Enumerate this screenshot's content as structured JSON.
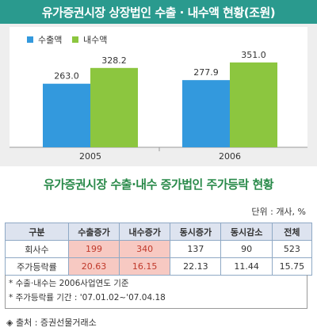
{
  "header": {
    "title": "유가증권시장 상장법인 수출 · 내수액 현황(조원)"
  },
  "chart_data": {
    "type": "bar",
    "categories": [
      "2005",
      "2006"
    ],
    "series": [
      {
        "name": "수출액",
        "values": [
          263.0,
          277.9
        ],
        "labels": [
          "263.0",
          "277.9"
        ],
        "color": "#3399dd"
      },
      {
        "name": "내수액",
        "values": [
          328.2,
          351.0
        ],
        "labels": [
          "328.2",
          "351.0"
        ],
        "color": "#8cc63f"
      }
    ],
    "legend": "top-left",
    "ylim": [
      0,
      380
    ],
    "grid": false
  },
  "table_section": {
    "title": "유가증권시장 수출·내수 증가법인 주가등락 현황",
    "unit": "단위 : 개사, %",
    "columns": [
      "구분",
      "수출증가",
      "내수증가",
      "동시증가",
      "동시감소",
      "전체"
    ],
    "rows": [
      {
        "label": "회사수",
        "values": [
          "199",
          "340",
          "137",
          "90",
          "523"
        ]
      },
      {
        "label": "주가등락률",
        "values": [
          "20.63",
          "16.15",
          "22.13",
          "11.44",
          "15.75"
        ]
      }
    ],
    "highlight_columns": [
      1,
      2
    ]
  },
  "notes": [
    "* 수출·내수는 2006사업연도 기준",
    "* 주가등락률 기간 : '07.01.02~'07.04.18"
  ],
  "source": "◈ 출처 : 증권선물거래소"
}
